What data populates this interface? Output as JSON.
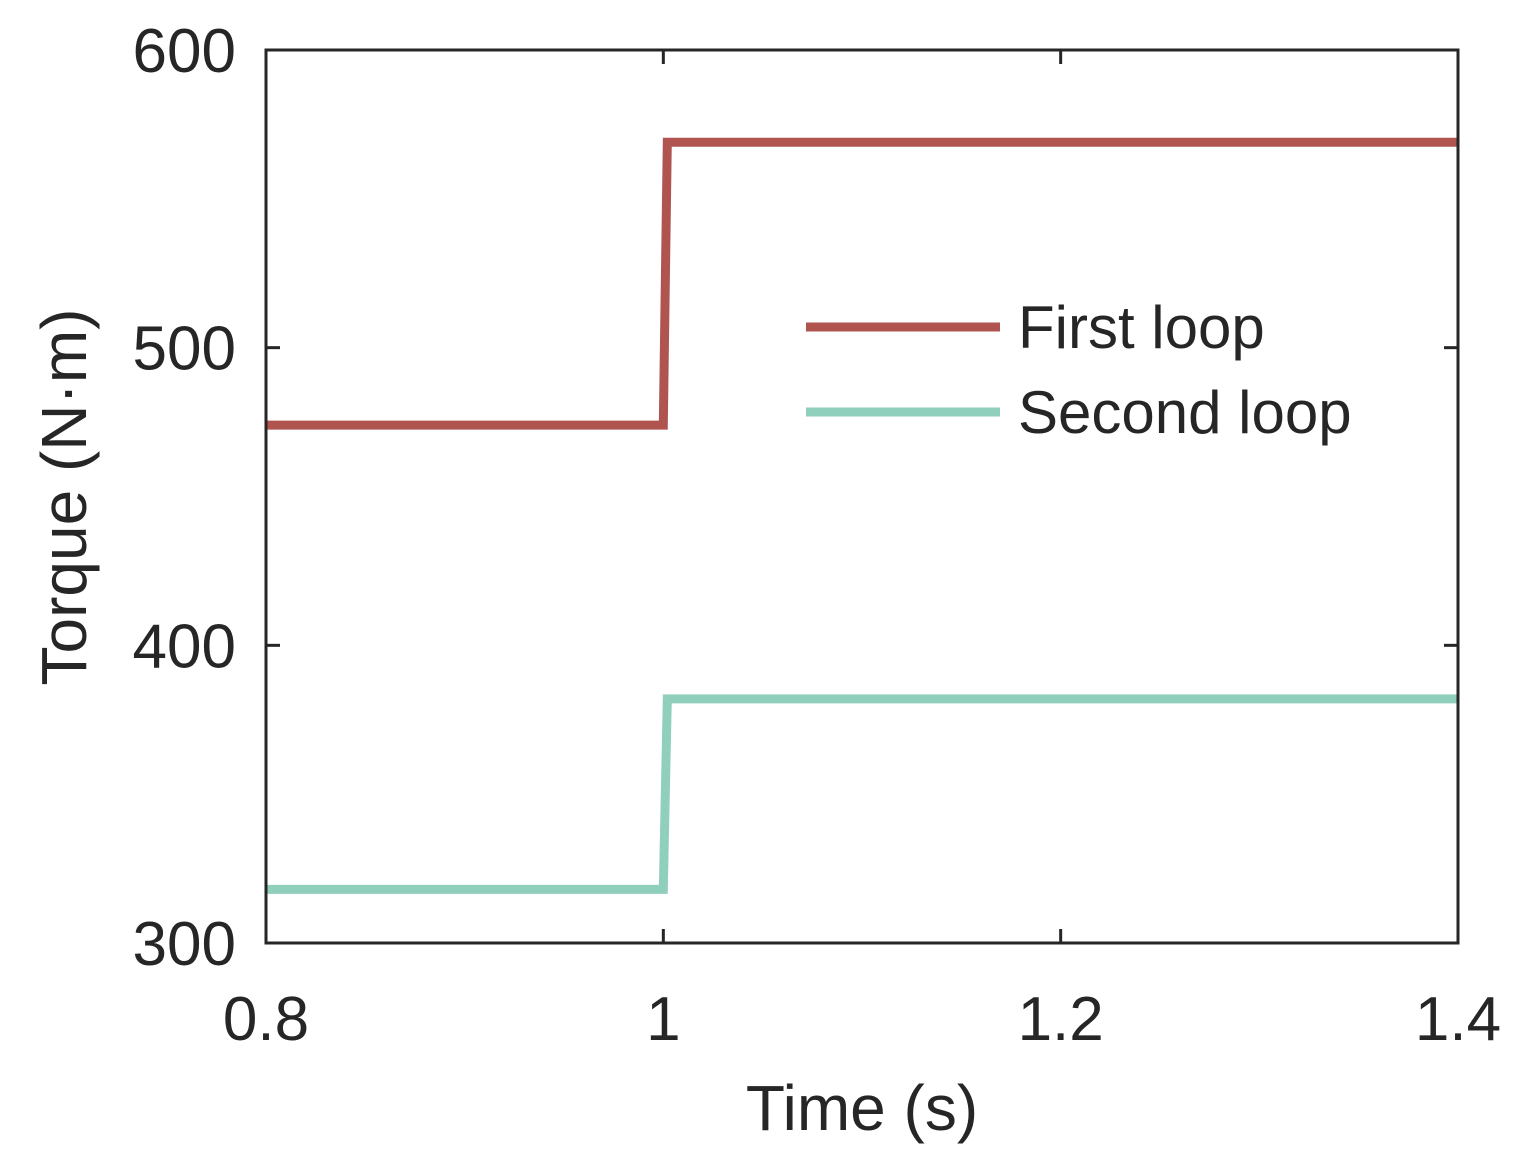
{
  "chart_data": {
    "type": "line",
    "title": "",
    "xlabel": "Time (s)",
    "ylabel": "Torque (N·m)",
    "xlim": [
      0.8,
      1.4
    ],
    "ylim": [
      300,
      600
    ],
    "xticks": [
      0.8,
      1.0,
      1.2,
      1.4
    ],
    "xtick_labels": [
      "0.8",
      "1",
      "1.2",
      "1.4"
    ],
    "yticks": [
      300,
      400,
      500,
      600
    ],
    "ytick_labels": [
      "300",
      "400",
      "500",
      "600"
    ],
    "grid": false,
    "legend_position": "top-right",
    "series": [
      {
        "name": "First loop",
        "color": "#b05450",
        "x": [
          0.8,
          1.0,
          1.002,
          1.4
        ],
        "y": [
          474,
          474,
          569,
          569
        ]
      },
      {
        "name": "Second loop",
        "color": "#8fcfbc",
        "x": [
          0.8,
          1.0,
          1.002,
          1.4
        ],
        "y": [
          318,
          318,
          382,
          382
        ]
      }
    ]
  }
}
